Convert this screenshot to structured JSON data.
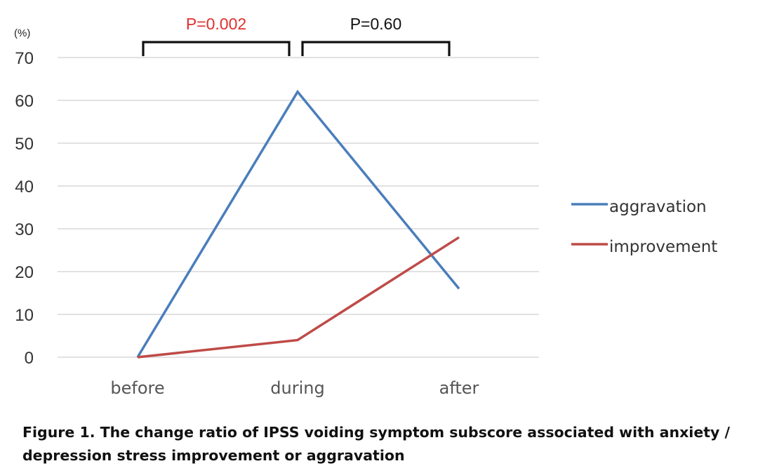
{
  "chart_data": {
    "type": "line",
    "categories": [
      "before",
      "during",
      "after"
    ],
    "series": [
      {
        "name": "aggravation",
        "values": [
          0,
          62,
          16
        ],
        "color": "#4a7ebb"
      },
      {
        "name": "improvement",
        "values": [
          0,
          4,
          28
        ],
        "color": "#be4b48"
      }
    ],
    "ylabel": "(%)",
    "ylim": [
      0,
      70
    ],
    "yticks": [
      0,
      10,
      20,
      30,
      40,
      50,
      60,
      70
    ],
    "grid": true,
    "legend": "right",
    "annotations": [
      {
        "text": "P=0.002",
        "from": "before",
        "to": "during",
        "color": "#e03030"
      },
      {
        "text": "P=0.60",
        "from": "during",
        "to": "after",
        "color": "#111111"
      }
    ]
  },
  "caption": {
    "line1": "Figure 1. The change ratio of IPSS voiding symptom subscore associated with anxiety /",
    "line2": "depression stress improvement or aggravation"
  }
}
